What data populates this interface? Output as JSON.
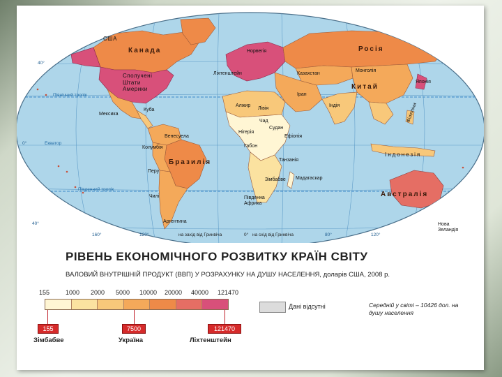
{
  "map": {
    "colors": {
      "ocean": "#aed6ea",
      "grid": "#5f9cc8",
      "tropic": "#3a88c8",
      "cls_1": "#fff6d4",
      "cls_2": "#fbe2a0",
      "cls_3": "#f8c87a",
      "cls_4": "#f4a95a",
      "cls_5": "#ee8a48",
      "cls_6": "#e56e64",
      "cls_7": "#d8507a",
      "no_data": "#dcdcdc"
    },
    "labels": {
      "usa_small": "США",
      "canada": "Канада",
      "usa": "Сполучені\nШтати\nАмерики",
      "mexico": "Мексика",
      "cuba": "Куба",
      "venezuela": "Венесуела",
      "colombia": "Колумбія",
      "brazil": "Бразилія",
      "peru": "Перу",
      "chile": "Чилі",
      "argentina": "Аргентина",
      "norway": "Норвегія",
      "liechtenstein": "Ліхтенштейн",
      "russia": "Росія",
      "kazakhstan": "Казахстан",
      "mongolia": "Монголія",
      "japan": "Японія",
      "china": "Китай",
      "iran": "Іран",
      "india": "Індія",
      "algeria": "Алжир",
      "libya": "Лівія",
      "chad": "Чад",
      "nigeria": "Нігерія",
      "sudan": "Судан",
      "ethiopia": "Ефіопія",
      "gabon": "Габон",
      "tanzania": "Танзанія",
      "zimbabwe": "Зімбабве",
      "madagascar": "Мадагаскар",
      "south_africa": "Південна\nАфрика",
      "philippines": "Філіппіни",
      "indonesia": "Індонезія",
      "australia": "Австралія",
      "new_zealand": "Нова\nЗеландія",
      "tropic_north": "Північний тропік",
      "equator": "Екватор",
      "tropic_south": "Південний тропік",
      "lat_40n": "40°",
      "lat_0": "0°",
      "lat_40s": "40°",
      "lon_160": "160°",
      "lon_120w": "120°",
      "lon_80": "80°",
      "lon_120e": "120°",
      "meridian_west": "на захід від Гринвіча",
      "meridian_zero": "0°",
      "meridian_east": "на схід від Гринвіча"
    }
  },
  "legend": {
    "title": "РІВЕНЬ ЕКОНОМІЧНОГО РОЗВИТКУ КРАЇН СВІТУ",
    "subtitle": "ВАЛОВИЙ ВНУТРІШНІЙ ПРОДУКТ (ВВП) У РОЗРАХУНКУ НА ДУШУ НАСЕЛЕННЯ, доларів США, 2008 р.",
    "scale": [
      "155",
      "1000",
      "2000",
      "5000",
      "10000",
      "20000",
      "40000",
      "121470"
    ],
    "missing_label": "Дані відсутні",
    "average_note": "Середній у світі – 10426 дол. на душу населення",
    "examples": [
      {
        "value": "155",
        "country": "Зімбабве",
        "color": "#d62a2a"
      },
      {
        "value": "7500",
        "country": "Україна",
        "color": "#d62a2a"
      },
      {
        "value": "121470",
        "country": "Ліхтенштейн",
        "color": "#d62a2a"
      }
    ]
  }
}
